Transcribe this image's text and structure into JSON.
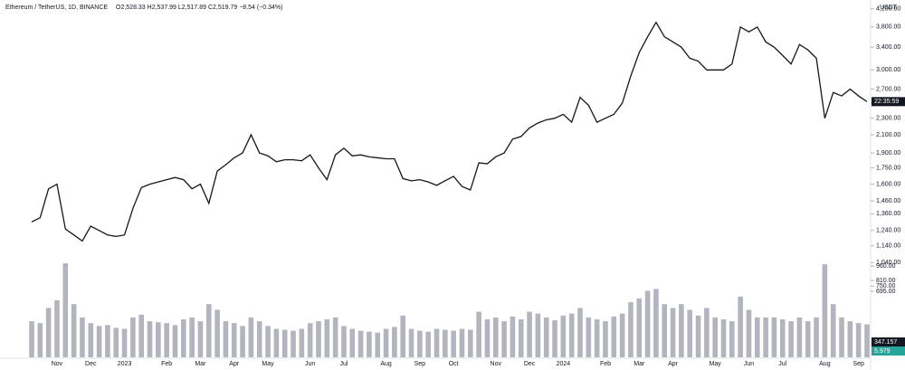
{
  "chart_data": {
    "type": "line",
    "title": "Ethereum / TetherUS, 1D, BINANCE",
    "ohlc_text": "O2,528.33 H2,537.99 L2,517.89 C2,519.79 −8.54 (−0.34%)",
    "currency": "USDT",
    "countdown": "22:35:59",
    "log_scale": true,
    "categories": [
      null,
      null,
      null,
      "Nov",
      null,
      null,
      null,
      "Dec",
      null,
      null,
      null,
      "2023",
      null,
      null,
      null,
      null,
      "Feb",
      null,
      null,
      null,
      "Mar",
      null,
      null,
      null,
      "Apr",
      null,
      null,
      null,
      "May",
      null,
      null,
      null,
      null,
      "Jun",
      null,
      null,
      null,
      "Jul",
      null,
      null,
      null,
      null,
      "Aug",
      null,
      null,
      null,
      "Sep",
      null,
      null,
      null,
      "Oct",
      null,
      null,
      null,
      null,
      "Nov",
      null,
      null,
      null,
      "Dec",
      null,
      null,
      null,
      "2024",
      null,
      null,
      null,
      null,
      "Feb",
      null,
      null,
      null,
      "Mar",
      null,
      null,
      null,
      "Apr",
      null,
      null,
      null,
      null,
      "May",
      null,
      null,
      null,
      "Jun",
      null,
      null,
      null,
      "Jul",
      null,
      null,
      null,
      null,
      "Aug",
      null,
      null,
      null,
      "Sep",
      null
    ],
    "series": [
      {
        "name": "ETHUSDT",
        "color": "#131722",
        "values": [
          1300,
          1330,
          1560,
          1600,
          1250,
          1210,
          1170,
          1270,
          1240,
          1210,
          1200,
          1210,
          1400,
          1570,
          1600,
          1620,
          1640,
          1660,
          1640,
          1560,
          1600,
          1440,
          1720,
          1780,
          1850,
          1900,
          2100,
          1900,
          1870,
          1810,
          1830,
          1830,
          1820,
          1880,
          1750,
          1640,
          1880,
          1950,
          1870,
          1880,
          1860,
          1850,
          1840,
          1840,
          1650,
          1630,
          1640,
          1620,
          1590,
          1630,
          1670,
          1580,
          1550,
          1800,
          1790,
          1860,
          1900,
          2050,
          2080,
          2180,
          2240,
          2280,
          2300,
          2350,
          2250,
          2580,
          2470,
          2250,
          2300,
          2350,
          2500,
          2900,
          3300,
          3600,
          3900,
          3600,
          3500,
          3400,
          3200,
          3150,
          3000,
          3000,
          3000,
          3100,
          3800,
          3700,
          3800,
          3500,
          3400,
          3250,
          3100,
          3450,
          3350,
          3200,
          2300,
          2650,
          2600,
          2700,
          2600,
          2520
        ]
      },
      {
        "name": "Volume",
        "color": "#b2b5be",
        "axis": "y2",
        "values": [
          380,
          360,
          520,
          600,
          990,
          560,
          420,
          360,
          330,
          340,
          310,
          300,
          420,
          450,
          380,
          370,
          360,
          340,
          400,
          420,
          380,
          560,
          500,
          380,
          360,
          330,
          420,
          380,
          330,
          300,
          290,
          280,
          300,
          360,
          380,
          400,
          420,
          330,
          300,
          280,
          270,
          260,
          300,
          320,
          440,
          300,
          280,
          270,
          300,
          290,
          280,
          300,
          290,
          480,
          400,
          420,
          380,
          430,
          400,
          480,
          460,
          420,
          390,
          440,
          460,
          520,
          420,
          400,
          380,
          430,
          460,
          580,
          620,
          700,
          720,
          560,
          520,
          560,
          500,
          440,
          520,
          420,
          400,
          380,
          640,
          500,
          420,
          420,
          420,
          400,
          380,
          420,
          380,
          420,
          980,
          560,
          420,
          380,
          360,
          347
        ]
      }
    ],
    "ylim": [
      1000,
      4300
    ],
    "yticks": [
      {
        "value": 4200,
        "label": "4,200.00"
      },
      {
        "value": 3800,
        "label": "3,800.00"
      },
      {
        "value": 3400,
        "label": "3,400.00"
      },
      {
        "value": 3000,
        "label": "3,000.00"
      },
      {
        "value": 2700,
        "label": "2,700.00"
      },
      {
        "value": 2500,
        "label": "2,500.00"
      },
      {
        "value": 2300,
        "label": "2,300.00"
      },
      {
        "value": 2100,
        "label": "2,100.00"
      },
      {
        "value": 1900,
        "label": "1,900.00"
      },
      {
        "value": 1750,
        "label": "1,750.00"
      },
      {
        "value": 1600,
        "label": "1,600.00"
      },
      {
        "value": 1460,
        "label": "1,460.00"
      },
      {
        "value": 1360,
        "label": "1,360.00"
      },
      {
        "value": 1240,
        "label": "1,240.00"
      },
      {
        "value": 1140,
        "label": "1,140.00"
      },
      {
        "value": 1040,
        "label": "1,040.00"
      }
    ],
    "y2lim": [
      0,
      1000
    ],
    "y2ticks": [
      {
        "value": 960,
        "label": "960.00"
      },
      {
        "value": 810,
        "label": "810.00"
      },
      {
        "value": 750,
        "label": "750.00"
      },
      {
        "value": 695,
        "label": "695.00"
      }
    ],
    "volume_tags": [
      "347.157",
      "5.979"
    ]
  }
}
